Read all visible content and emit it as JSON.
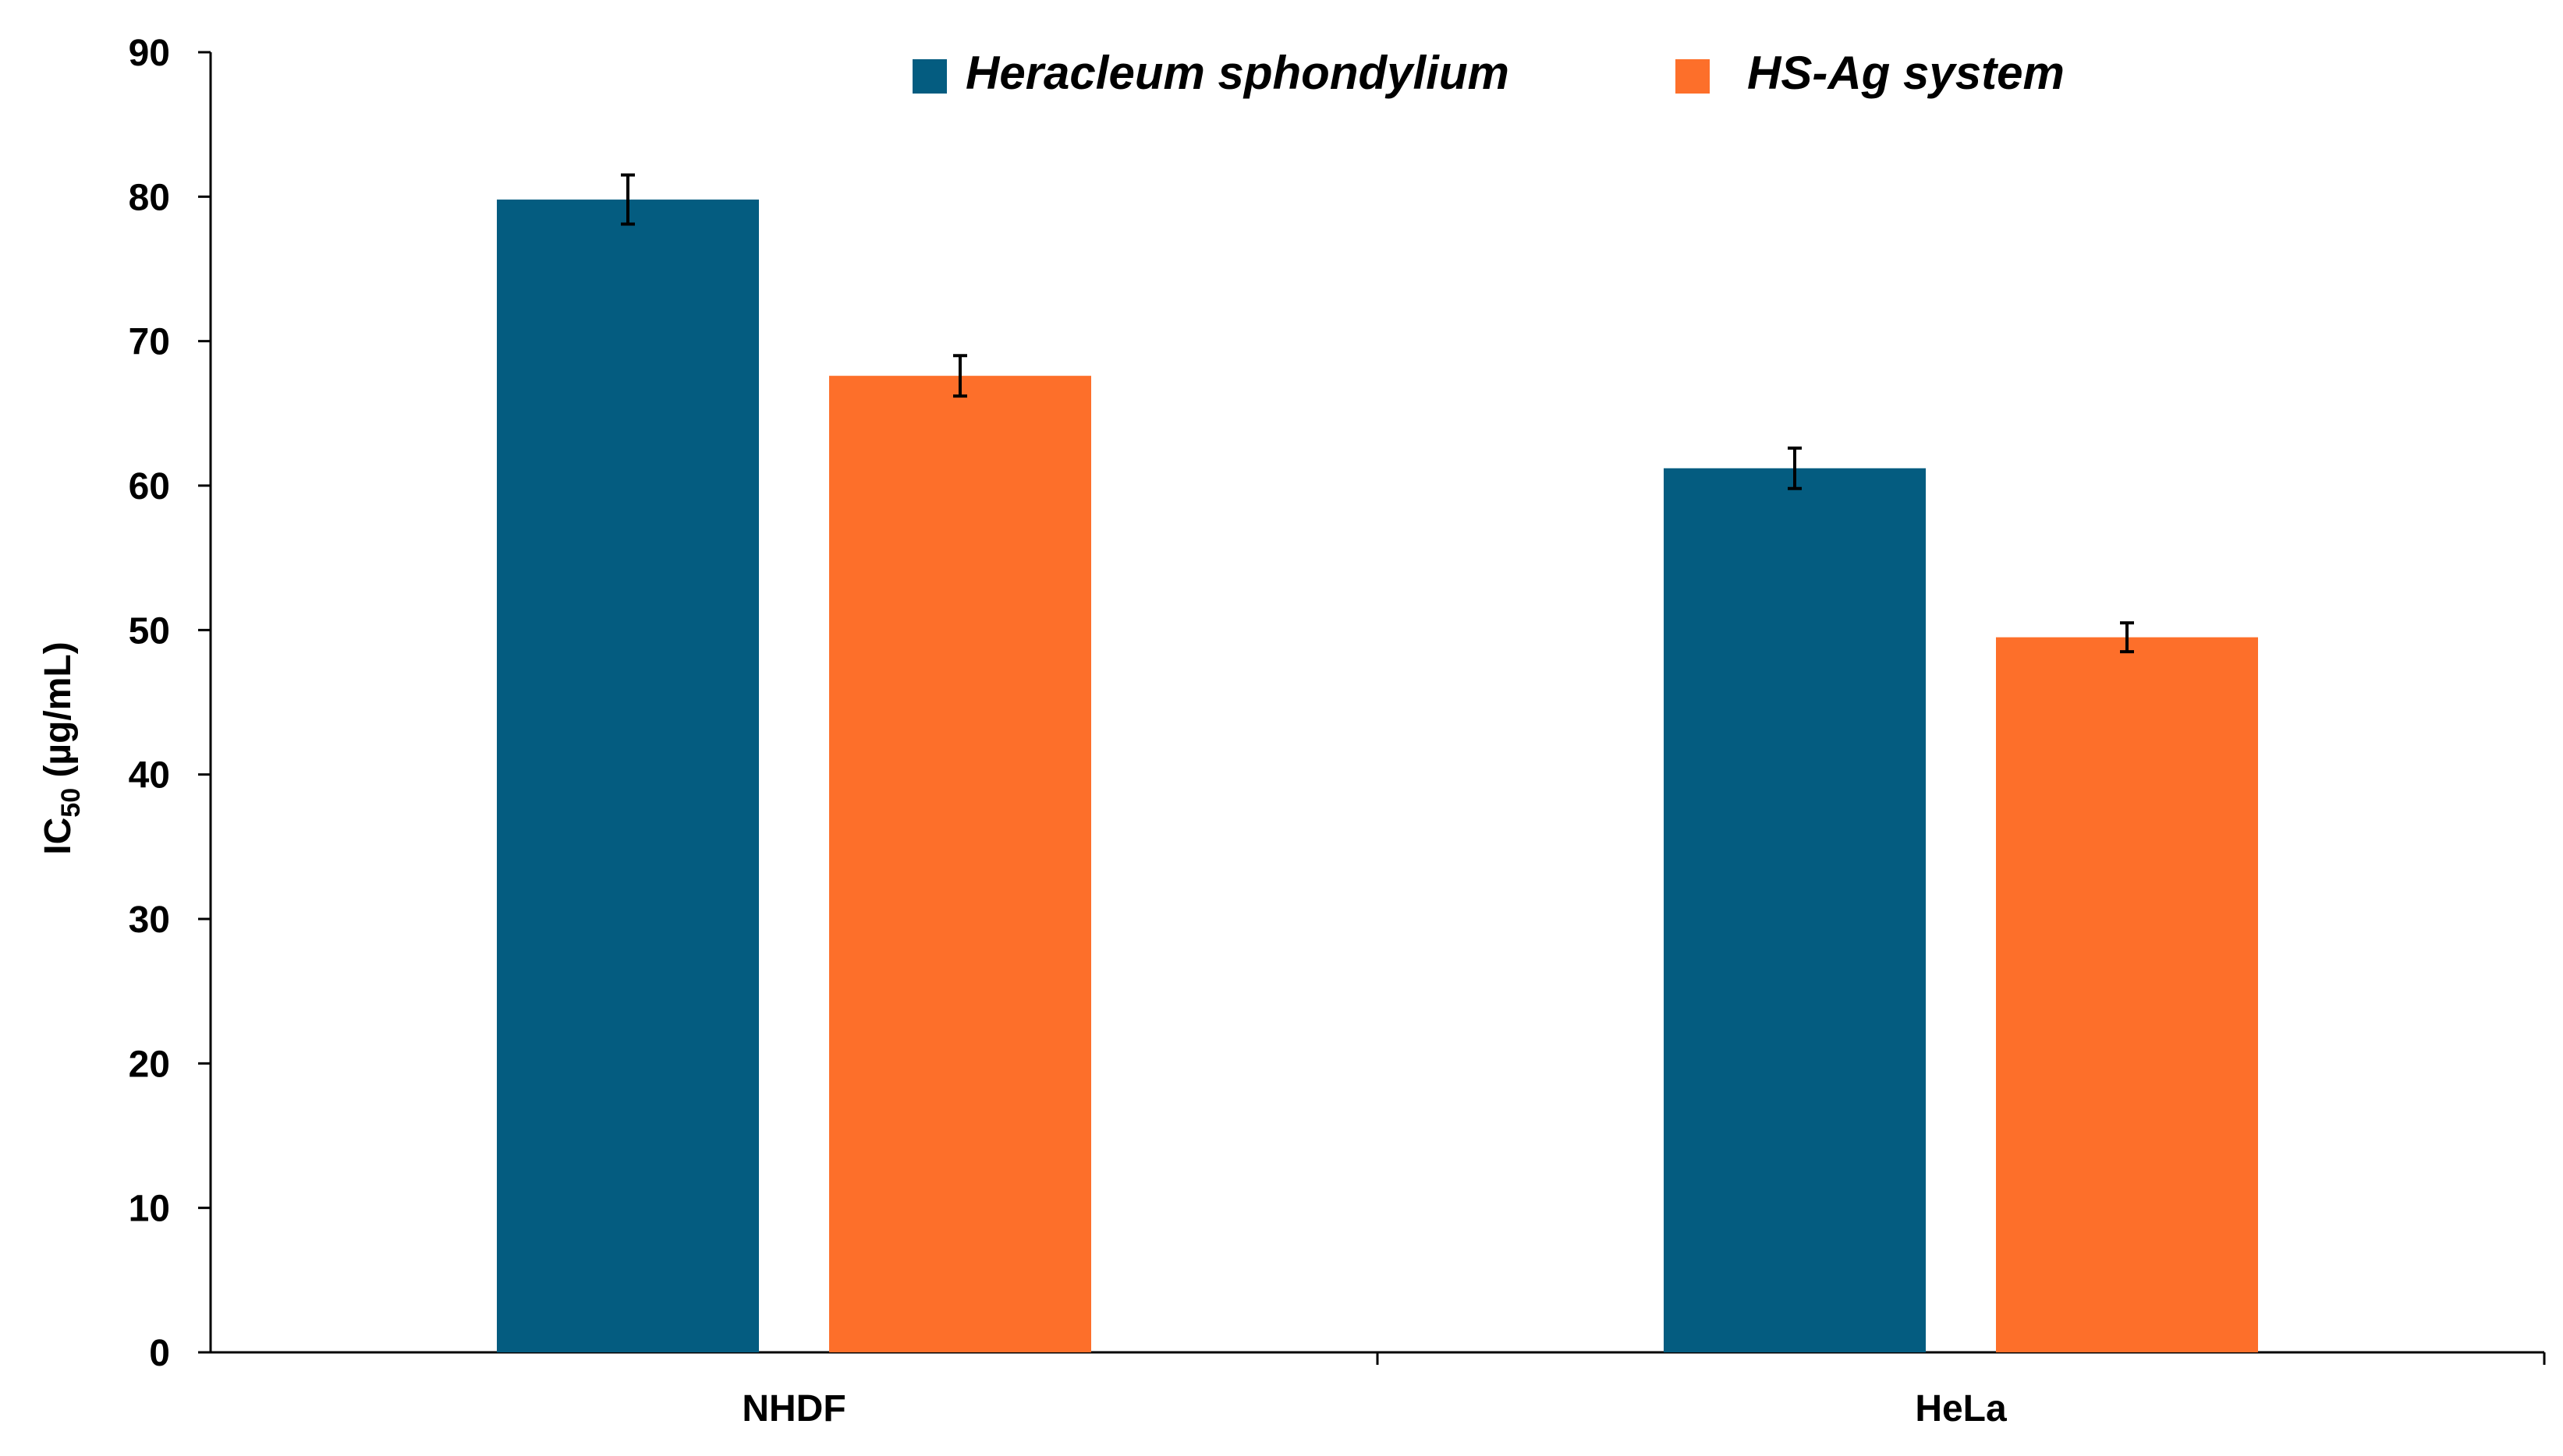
{
  "chart_data": {
    "type": "bar",
    "categories": [
      "NHDF",
      "HeLa"
    ],
    "series": [
      {
        "name": "Heracleum sphondylium",
        "values": [
          79.8,
          61.2
        ],
        "errors": [
          1.7,
          1.4
        ],
        "color": "#045C80"
      },
      {
        "name": "HS-Ag system",
        "values": [
          67.6,
          49.5
        ],
        "errors": [
          1.4,
          1.0
        ],
        "color": "#FD6F2A"
      }
    ],
    "ylabel": {
      "main": "IC",
      "sub": "50",
      "rest": " (µg/mL)"
    },
    "yticks": [
      0,
      10,
      20,
      30,
      40,
      50,
      60,
      70,
      80,
      90
    ],
    "ylim": [
      0,
      90
    ],
    "grid": false,
    "legend_position": "top"
  }
}
